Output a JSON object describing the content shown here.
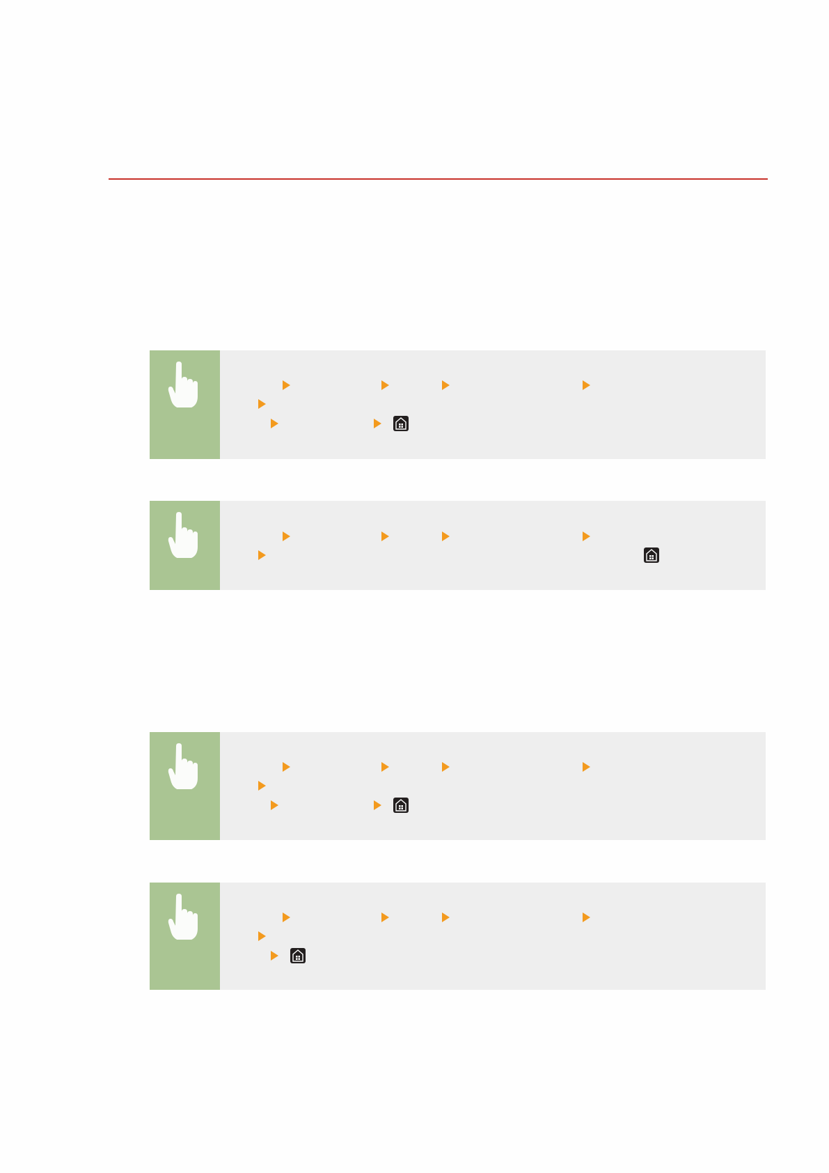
{
  "colors": {
    "rule": "#c8312a",
    "panel_side": "#aac593",
    "panel_bg": "#eeeeee",
    "arrow": "#f39a1e"
  },
  "icons": {
    "panel": "hand-pointer-icon",
    "step": "triangle-arrow-icon",
    "end": "home-button-icon"
  },
  "panels": [
    {
      "rows": 3
    },
    {
      "rows": 2
    },
    {
      "rows": 3
    },
    {
      "rows": 3
    }
  ]
}
